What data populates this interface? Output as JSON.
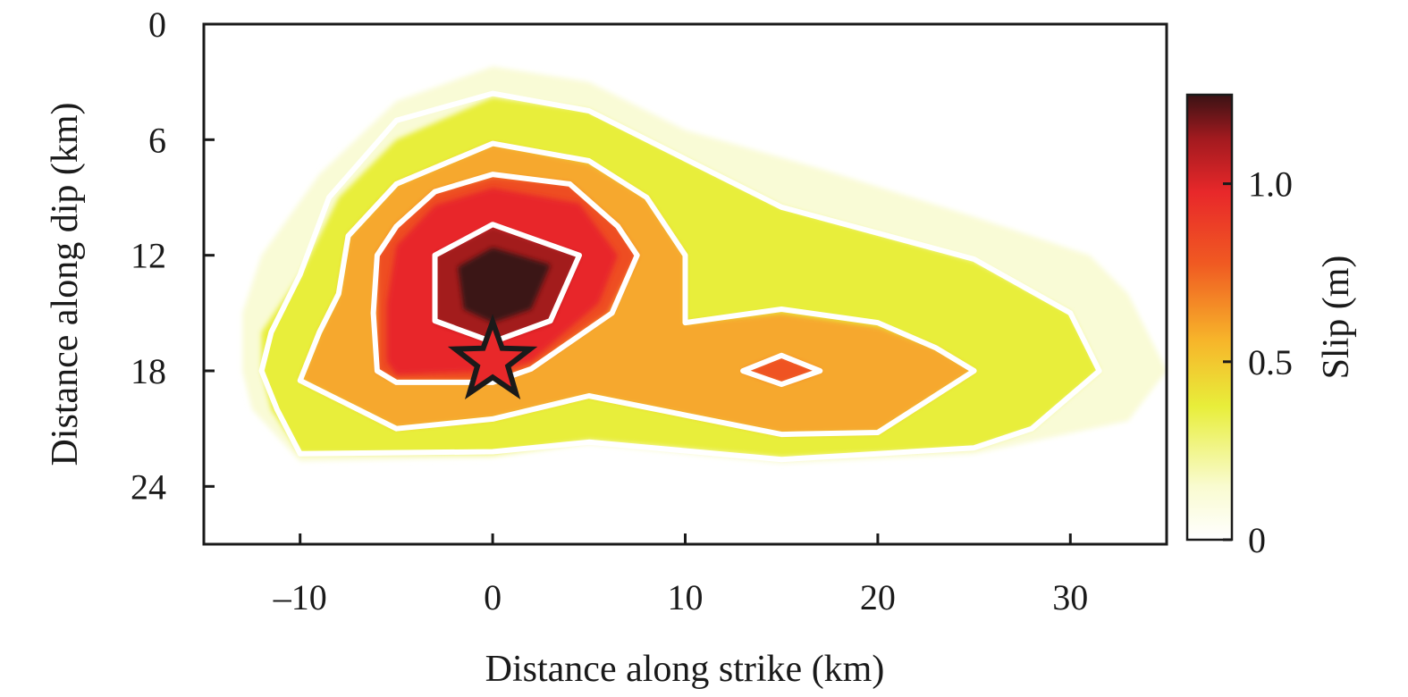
{
  "chart_data": {
    "type": "heatmap",
    "title": "",
    "xlabel": "Distance along strike (km)",
    "ylabel": "Distance along dip (km)",
    "xlim": [
      -15,
      35
    ],
    "ylim": [
      27,
      0
    ],
    "x_ticks": [
      -10,
      0,
      10,
      20,
      30
    ],
    "x_tick_labels": [
      "–10",
      "0",
      "10",
      "20",
      "30"
    ],
    "y_ticks": [
      0,
      6,
      12,
      18,
      24
    ],
    "y_tick_labels": [
      "0",
      "6",
      "12",
      "18",
      "24"
    ],
    "colorbar": {
      "label": "Slip (m)",
      "range": [
        0,
        1.25
      ],
      "ticks": [
        0,
        0.5,
        1.0
      ],
      "tick_labels": [
        "0",
        "0.5",
        "1.0"
      ],
      "colors": [
        "#ffffff",
        "#f9fbd0",
        "#e8ee3a",
        "#f7b42a",
        "#f05a22",
        "#e8282a",
        "#a31a1f",
        "#3a1214"
      ]
    },
    "hypocenter": {
      "x": 0,
      "y": 17.5,
      "color": "#e8282a"
    },
    "slip_levels": [
      {
        "slip": 0.1,
        "color": "#f9fbd6",
        "polygon": [
          [
            -13,
            18
          ],
          [
            -12.5,
            20
          ],
          [
            -10,
            22.7
          ],
          [
            0,
            22.5
          ],
          [
            5,
            21.8
          ],
          [
            15,
            22.8
          ],
          [
            25,
            22.3
          ],
          [
            33,
            20.6
          ],
          [
            35,
            18
          ],
          [
            33,
            14
          ],
          [
            31,
            12
          ],
          [
            25,
            10
          ],
          [
            17,
            7.5
          ],
          [
            10,
            5.5
          ],
          [
            5,
            3
          ],
          [
            0,
            2.2
          ],
          [
            -5,
            4
          ],
          [
            -9,
            7.8
          ],
          [
            -12,
            12
          ],
          [
            -13,
            15
          ]
        ]
      },
      {
        "slip": 0.3,
        "color": "#e8ee3a",
        "polygon": [
          [
            -12,
            18
          ],
          [
            -11.5,
            20
          ],
          [
            -10,
            22.3
          ],
          [
            0,
            22.3
          ],
          [
            5,
            21.6
          ],
          [
            15,
            22.5
          ],
          [
            25,
            22.0
          ],
          [
            28,
            21
          ],
          [
            31.5,
            18
          ],
          [
            30,
            15
          ],
          [
            25,
            12.3
          ],
          [
            15,
            9.5
          ],
          [
            10,
            7
          ],
          [
            5,
            4.5
          ],
          [
            0,
            3.8
          ],
          [
            -5,
            6
          ],
          [
            -8,
            9
          ],
          [
            -10,
            13
          ],
          [
            -12,
            16
          ]
        ]
      },
      {
        "slip": 0.5,
        "color": "#f6a82e",
        "polygon": [
          [
            -10,
            18.5
          ],
          [
            -7,
            20
          ],
          [
            -5,
            21
          ],
          [
            0,
            20.5
          ],
          [
            5,
            19.3
          ],
          [
            15,
            21.3
          ],
          [
            20,
            21.2
          ],
          [
            25,
            18
          ],
          [
            23,
            16.8
          ],
          [
            20,
            15.7
          ],
          [
            15,
            15.0
          ],
          [
            10,
            15.5
          ],
          [
            10,
            12
          ],
          [
            8,
            9
          ],
          [
            5,
            7.2
          ],
          [
            0,
            6.2
          ],
          [
            -5,
            8.3
          ],
          [
            -7.5,
            11
          ],
          [
            -8,
            14
          ],
          [
            -9,
            16
          ]
        ]
      },
      {
        "slip": 0.7,
        "color": "#ee4d24",
        "polygon": [
          [
            -6,
            18
          ],
          [
            -5,
            18.5
          ],
          [
            0,
            18.5
          ],
          [
            2,
            17.8
          ],
          [
            6,
            15
          ],
          [
            7.5,
            12
          ],
          [
            6.5,
            10.5
          ],
          [
            4,
            8.3
          ],
          [
            0,
            7.9
          ],
          [
            -3,
            8.7
          ],
          [
            -5,
            10.5
          ],
          [
            -6,
            12
          ],
          [
            -6,
            15
          ]
        ]
      },
      {
        "slip": 0.8,
        "color": "#e8282a",
        "polygon": [
          [
            -5.5,
            17.5
          ],
          [
            -5,
            18.2
          ],
          [
            0,
            18
          ],
          [
            2,
            17.5
          ],
          [
            5.5,
            14.5
          ],
          [
            6.5,
            12
          ],
          [
            4.5,
            9.3
          ],
          [
            0,
            8.5
          ],
          [
            -3,
            9.4
          ],
          [
            -5,
            11.5
          ],
          [
            -5.5,
            14.5
          ]
        ]
      },
      {
        "slip": 0.6,
        "color": "#ef5223",
        "polygon": [
          [
            13,
            18
          ],
          [
            15,
            18.7
          ],
          [
            17,
            18
          ],
          [
            15,
            17.2
          ]
        ]
      },
      {
        "slip": 1.0,
        "color": "#a31a1f",
        "polygon": [
          [
            -3,
            15.5
          ],
          [
            0,
            16.5
          ],
          [
            3,
            15.5
          ],
          [
            4.5,
            12
          ],
          [
            0,
            10.5
          ],
          [
            -3,
            12
          ]
        ]
      },
      {
        "slip": 1.2,
        "color": "#3a1214",
        "polygon": [
          [
            -1.5,
            14.8
          ],
          [
            0,
            15.5
          ],
          [
            2,
            14.8
          ],
          [
            3,
            12.5
          ],
          [
            0,
            11.6
          ],
          [
            -1.8,
            12.6
          ]
        ]
      }
    ],
    "contours": [
      {
        "slip": 0.25,
        "points": [
          [
            -12,
            18
          ],
          [
            -11.2,
            20
          ],
          [
            -10,
            22.3
          ],
          [
            0,
            22.2
          ],
          [
            5,
            21.7
          ],
          [
            15,
            22.6
          ],
          [
            25,
            22.0
          ],
          [
            28,
            21
          ],
          [
            31.5,
            18
          ],
          [
            30,
            15
          ],
          [
            25,
            12.2
          ],
          [
            15,
            9.5
          ],
          [
            10,
            7
          ],
          [
            5,
            4.5
          ],
          [
            0,
            3.6
          ],
          [
            -5,
            5
          ],
          [
            -8.5,
            9
          ],
          [
            -10,
            13
          ],
          [
            -11.5,
            16
          ]
        ]
      },
      {
        "slip": 0.5,
        "points": [
          [
            -10,
            18.5
          ],
          [
            -7,
            20
          ],
          [
            -5,
            21
          ],
          [
            0,
            20.5
          ],
          [
            5,
            19.3
          ],
          [
            15,
            21.3
          ],
          [
            20,
            21.2
          ],
          [
            25,
            18
          ],
          [
            23,
            16.8
          ],
          [
            20,
            15.5
          ],
          [
            15,
            14.8
          ],
          [
            10,
            15.5
          ],
          [
            10,
            12
          ],
          [
            8,
            9
          ],
          [
            5,
            7.1
          ],
          [
            0,
            6.2
          ],
          [
            -5,
            8.3
          ],
          [
            -7.5,
            11
          ],
          [
            -8,
            14
          ],
          [
            -9,
            16
          ]
        ]
      },
      {
        "slip": 0.75,
        "points": [
          [
            -6,
            18
          ],
          [
            -5,
            18.6
          ],
          [
            0,
            18.6
          ],
          [
            2,
            17.9
          ],
          [
            6.2,
            15
          ],
          [
            7.5,
            12
          ],
          [
            6.5,
            10.5
          ],
          [
            4,
            8.3
          ],
          [
            0,
            7.8
          ],
          [
            -3,
            8.7
          ],
          [
            -5,
            10.5
          ],
          [
            -6,
            12
          ],
          [
            -6.2,
            15
          ]
        ]
      },
      {
        "slip": 1.0,
        "points": [
          [
            -3,
            15.4
          ],
          [
            0,
            16.5
          ],
          [
            3,
            15.4
          ],
          [
            4.5,
            12
          ],
          [
            0,
            10.4
          ],
          [
            -3,
            12
          ]
        ]
      },
      {
        "slip": 0.75,
        "points": [
          [
            13,
            18
          ],
          [
            15,
            18.7
          ],
          [
            17,
            18
          ],
          [
            15,
            17.2
          ]
        ]
      }
    ]
  }
}
